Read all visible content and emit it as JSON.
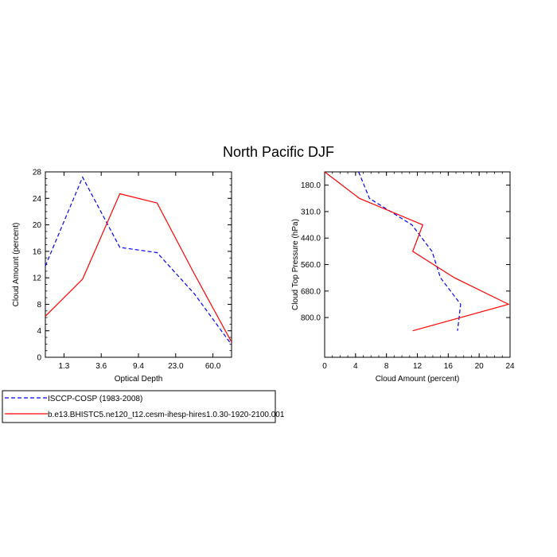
{
  "figure": {
    "title": "North Pacific DJF"
  },
  "legend": [
    {
      "label": "ISCCP-COSP (1983-2008)",
      "color": "#0000ff",
      "dash": "dashed"
    },
    {
      "label": "b.e13.BHISTC5.ne120_t12.cesm-ihesp-hires1.0.30-1920-2100.001",
      "color": "#ff0000",
      "dash": "solid"
    }
  ],
  "chart_data": [
    {
      "type": "line",
      "xlabel": "Optical Depth",
      "ylabel": "Cloud Amount (percent)",
      "xlim": [
        0,
        5
      ],
      "ylim": [
        0,
        28
      ],
      "x_ticks": [
        {
          "pos": 0.5,
          "label": "1.3"
        },
        {
          "pos": 1.5,
          "label": "3.6"
        },
        {
          "pos": 2.5,
          "label": "9.4"
        },
        {
          "pos": 3.5,
          "label": "23.0"
        },
        {
          "pos": 4.5,
          "label": "60.0"
        }
      ],
      "y_ticks": [
        0,
        4,
        8,
        12,
        16,
        20,
        24,
        28
      ],
      "series": [
        {
          "name": "ISCCP-COSP (1983-2008)",
          "color": "#0000ff",
          "dash": "dashed",
          "x": [
            0,
            1,
            2,
            3,
            4,
            5
          ],
          "y": [
            13.8,
            27.2,
            16.6,
            15.8,
            9.6,
            1.9
          ]
        },
        {
          "name": "b.e13.BHISTC5.ne120_t12.cesm-ihesp-hires1.0.30-1920-2100.001",
          "color": "#ff0000",
          "dash": "solid",
          "x": [
            0,
            1,
            2,
            3,
            4,
            5
          ],
          "y": [
            6.2,
            11.8,
            24.7,
            23.3,
            12.6,
            2.3
          ]
        }
      ]
    },
    {
      "type": "line",
      "xlabel": "Cloud Amount (percent)",
      "ylabel": "Cloud Top Pressure (hPa)",
      "xlim": [
        0,
        24
      ],
      "ylim": [
        0,
        7
      ],
      "y_inverted": true,
      "x_ticks": [
        0,
        4,
        8,
        12,
        16,
        20,
        24
      ],
      "y_ticks": [
        {
          "pos": 0.5,
          "label": "180.0"
        },
        {
          "pos": 1.5,
          "label": "310.0"
        },
        {
          "pos": 2.5,
          "label": "440.0"
        },
        {
          "pos": 3.5,
          "label": "560.0"
        },
        {
          "pos": 4.5,
          "label": "680.0"
        },
        {
          "pos": 5.5,
          "label": "800.0"
        }
      ],
      "series": [
        {
          "name": "ISCCP-COSP (1983-2008)",
          "color": "#0000ff",
          "dash": "dashed",
          "x": [
            4.4,
            5.8,
            11.3,
            13.9,
            15.0,
            17.6,
            17.2
          ],
          "y": [
            0,
            1,
            2,
            3,
            4,
            5,
            6
          ]
        },
        {
          "name": "b.e13.BHISTC5.ne120_t12.cesm-ihesp-hires1.0.30-1920-2100.001",
          "color": "#ff0000",
          "dash": "solid",
          "x": [
            0.0,
            4.5,
            12.7,
            11.4,
            16.8,
            23.8,
            11.4
          ],
          "y": [
            0,
            1,
            2,
            3,
            4,
            5,
            6
          ]
        }
      ]
    }
  ]
}
